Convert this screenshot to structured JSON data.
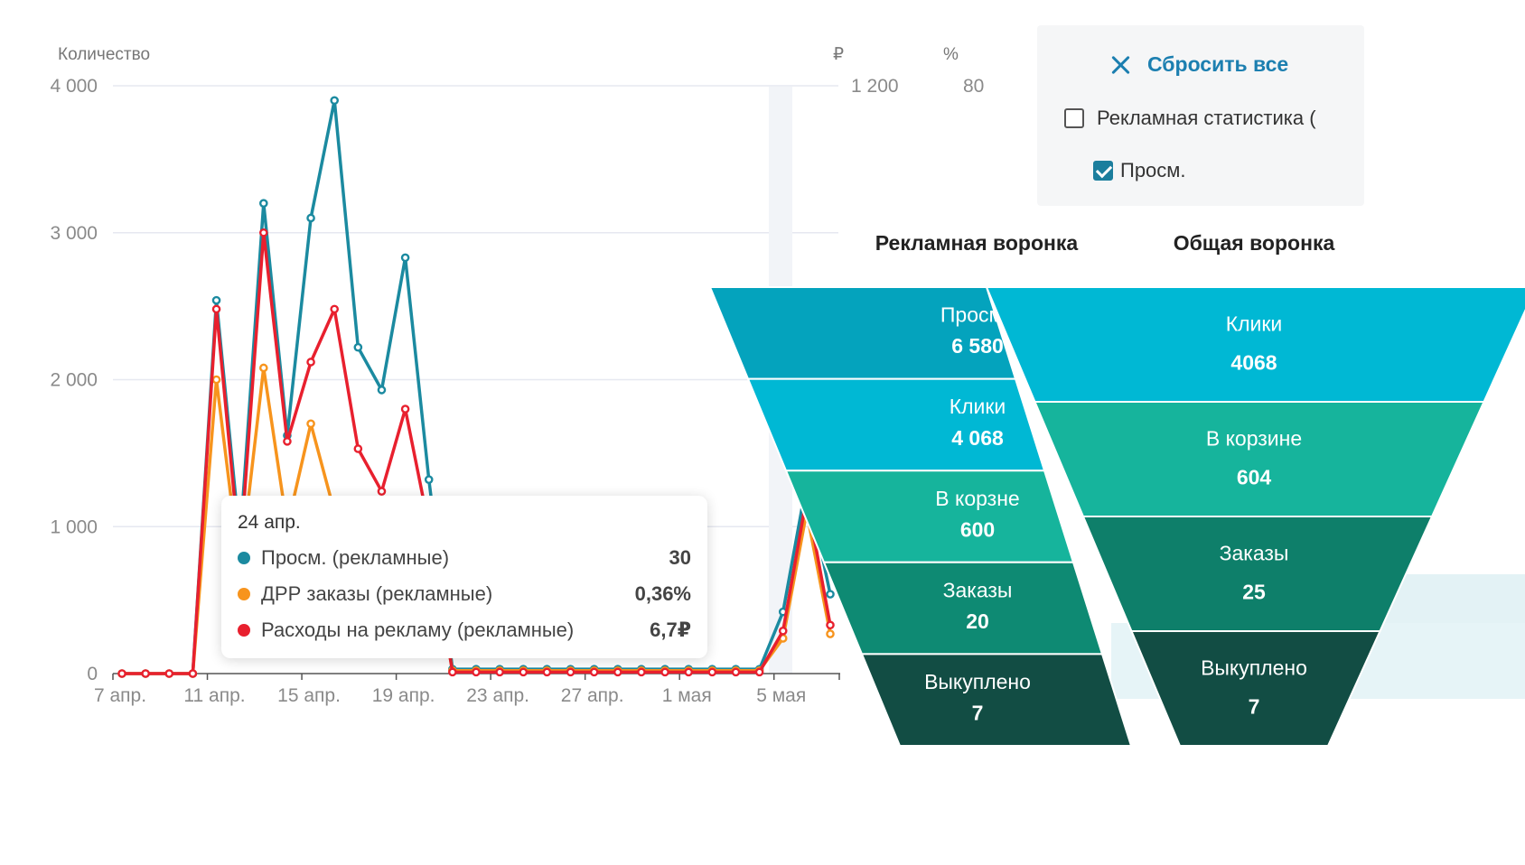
{
  "colors": {
    "views": "#1b8aa0",
    "drr": "#f7941d",
    "spend": "#e8202e",
    "grid": "#e6e8f0",
    "accent": "#1c7fb0"
  },
  "axes": {
    "left_title": "Количество",
    "right_rub_title": "₽",
    "right_pct_title": "%",
    "right_rub_top": "1 200",
    "right_pct_top": "80"
  },
  "chart_data": {
    "type": "line",
    "x": [
      "7 апр.",
      "8 апр.",
      "9 апр.",
      "10 апр.",
      "11 апр.",
      "12 апр.",
      "13 апр.",
      "14 апр.",
      "15 апр.",
      "16 апр.",
      "17 апр.",
      "18 апр.",
      "19 апр.",
      "20 апр.",
      "21 апр.",
      "22 апр.",
      "23 апр.",
      "24 апр.",
      "25 апр.",
      "26 апр.",
      "27 апр.",
      "28 апр.",
      "29 апр.",
      "30 апр.",
      "1 мая",
      "2 мая",
      "3 мая",
      "4 мая",
      "5 мая",
      "6 мая",
      "7 мая"
    ],
    "xticks": [
      "7 апр.",
      "11 апр.",
      "15 апр.",
      "19 апр.",
      "23 апр.",
      "27 апр.",
      "1 мая",
      "5 мая"
    ],
    "yticks": [
      "0",
      "1 000",
      "2 000",
      "3 000",
      "4 000"
    ],
    "ylim": [
      0,
      4000
    ],
    "grid": true,
    "series": [
      {
        "name": "Просм. (рекламные)",
        "color_key": "views",
        "values": [
          0,
          0,
          0,
          0,
          2540,
          900,
          3200,
          1620,
          3100,
          3900,
          2220,
          1930,
          2830,
          1320,
          30,
          30,
          30,
          30,
          30,
          30,
          30,
          30,
          30,
          30,
          30,
          30,
          30,
          30,
          420,
          1300,
          540
        ]
      },
      {
        "name": "ДРР заказы (рекламные)",
        "color_key": "drr",
        "values": [
          0,
          0,
          0,
          0,
          2000,
          700,
          2080,
          1000,
          1700,
          1100,
          1000,
          900,
          1100,
          900,
          20,
          20,
          20,
          20,
          20,
          20,
          20,
          20,
          20,
          20,
          20,
          20,
          20,
          20,
          240,
          1100,
          270
        ]
      },
      {
        "name": "Расходы на рекламу (рекламные)",
        "color_key": "spend",
        "values": [
          0,
          0,
          0,
          0,
          2480,
          800,
          3000,
          1580,
          2120,
          2480,
          1530,
          1240,
          1800,
          1000,
          10,
          10,
          10,
          10,
          10,
          10,
          10,
          10,
          10,
          10,
          10,
          10,
          10,
          10,
          290,
          1200,
          330
        ]
      }
    ]
  },
  "tooltip": {
    "date": "24 апр.",
    "rows": [
      {
        "name": "Просм. (рекламные)",
        "value": "30",
        "color": "#1b8aa0"
      },
      {
        "name": "ДРР заказы (рекламные)",
        "value": "0,36%",
        "color": "#f7941d"
      },
      {
        "name": "Расходы на рекламу (рекламные)",
        "value": "6,7₽",
        "color": "#e8202e"
      }
    ]
  },
  "filters": {
    "reset_label": "Сбросить все",
    "ad_stats_label": "Рекламная статистика (",
    "ad_stats_checked": false,
    "views_label": "Просм.",
    "views_checked": true
  },
  "funnels": {
    "ad": {
      "title": "Рекламная воронка",
      "stages": [
        {
          "label": "Просмо",
          "value": "6 580",
          "color": "#04a3bd"
        },
        {
          "label": "Клики",
          "value": "4 068",
          "color": "#00b8d4"
        },
        {
          "label": "В корзне",
          "value": "600",
          "color": "#16b49c"
        },
        {
          "label": "Заказы",
          "value": "20",
          "color": "#0e8a73"
        },
        {
          "label": "Выкуплено",
          "value": "7",
          "color": "#124d44"
        }
      ]
    },
    "general": {
      "title": "Общая воронка",
      "stages": [
        {
          "label": "Клики",
          "value": "4068",
          "color": "#00b8d4"
        },
        {
          "label": "В корзине",
          "value": "604",
          "color": "#16b49c"
        },
        {
          "label": "Заказы",
          "value": "25",
          "color": "#0e7f6a"
        },
        {
          "label": "Выкуплено",
          "value": "7",
          "color": "#124d44"
        }
      ]
    }
  }
}
